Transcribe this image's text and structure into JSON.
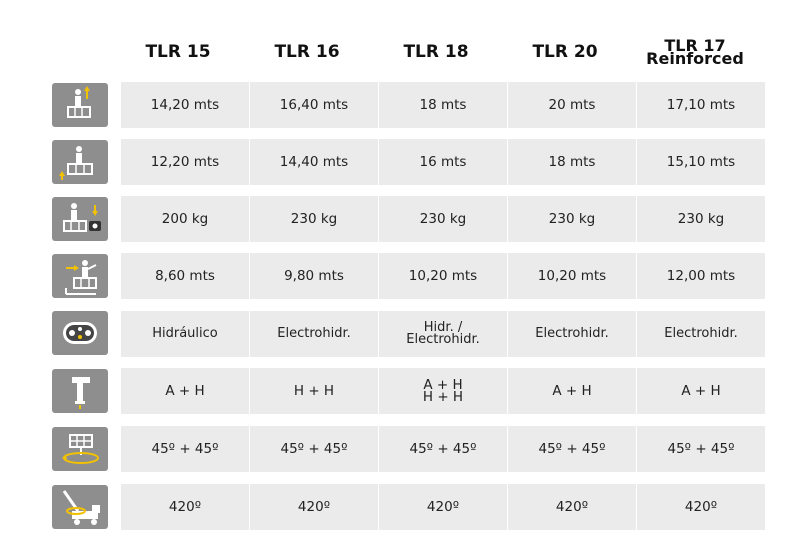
{
  "headers": [
    "TLR 15",
    "TLR 16",
    "TLR 18",
    "TLR 20",
    "TLR 17\nReinforced"
  ],
  "rows": [
    {
      "icon": "working-height-icon",
      "values": [
        "14,20 mts",
        "16,40 mts",
        "18 mts",
        "20 mts",
        "17,10 mts"
      ]
    },
    {
      "icon": "platform-height-icon",
      "values": [
        "12,20 mts",
        "14,40 mts",
        "16 mts",
        "18 mts",
        "15,10 mts"
      ]
    },
    {
      "icon": "basket-load-icon",
      "values": [
        "200 kg",
        "230 kg",
        "230 kg",
        "230 kg",
        "230 kg"
      ]
    },
    {
      "icon": "horizontal-reach-icon",
      "values": [
        "8,60 mts",
        "9,80 mts",
        "10,20 mts",
        "10,20 mts",
        "12,00 mts"
      ]
    },
    {
      "icon": "control-panel-icon",
      "values": [
        "Hidráulico",
        "Electrohidr.",
        "Hidr. /\nElectrohidr.",
        "Electrohidr.",
        "Electrohidr."
      ]
    },
    {
      "icon": "outrigger-icon",
      "values": [
        "A + H",
        "H + H",
        "A + H\nH + H",
        "A + H",
        "A + H"
      ]
    },
    {
      "icon": "basket-rotation-icon",
      "values": [
        "45º + 45º",
        "45º + 45º",
        "45º + 45º",
        "45º + 45º",
        "45º + 45º"
      ]
    },
    {
      "icon": "turret-rotation-icon",
      "values": [
        "420º",
        "420º",
        "420º",
        "420º",
        "420º"
      ]
    }
  ],
  "colors": {
    "icon_bg": "#8e8e8e",
    "cell_bg": "#ebebeb",
    "accent": "#f2c200"
  }
}
